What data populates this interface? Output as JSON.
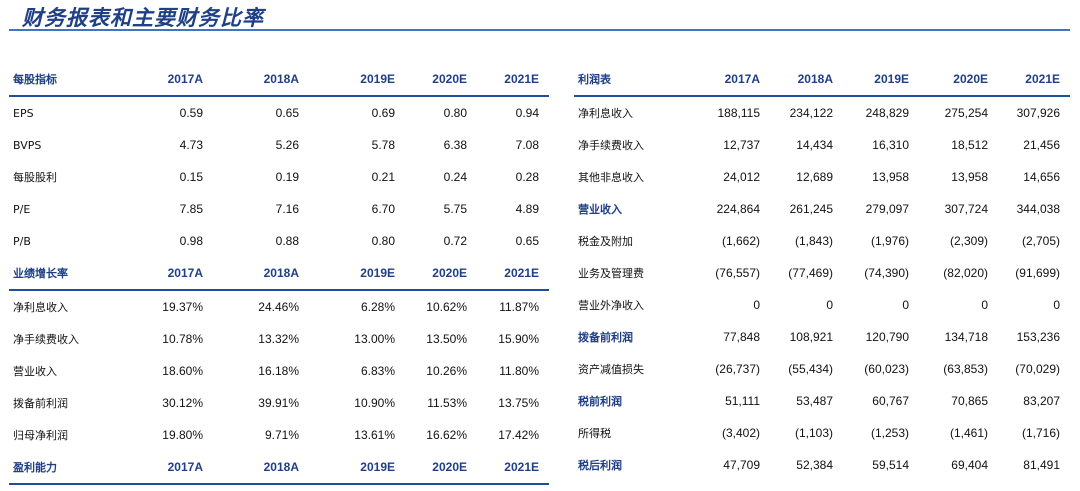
{
  "page": {
    "title": "财务报表和主要财务比率"
  },
  "left_table": {
    "sections": [
      {
        "header": [
          "每股指标",
          "2017A",
          "2018A",
          "2019E",
          "2020E",
          "2021E"
        ],
        "rows": [
          [
            "EPS",
            "0.59",
            "0.65",
            "0.69",
            "0.80",
            "0.94"
          ],
          [
            "BVPS",
            "4.73",
            "5.26",
            "5.78",
            "6.38",
            "7.08"
          ],
          [
            "每股股利",
            "0.15",
            "0.19",
            "0.21",
            "0.24",
            "0.28"
          ],
          [
            "P/E",
            "7.85",
            "7.16",
            "6.70",
            "5.75",
            "4.89"
          ],
          [
            "P/B",
            "0.98",
            "0.88",
            "0.80",
            "0.72",
            "0.65"
          ]
        ]
      },
      {
        "header": [
          "业绩增长率",
          "2017A",
          "2018A",
          "2019E",
          "2020E",
          "2021E"
        ],
        "rows": [
          [
            "净利息收入",
            "19.37%",
            "24.46%",
            "6.28%",
            "10.62%",
            "11.87%"
          ],
          [
            "净手续费收入",
            "10.78%",
            "13.32%",
            "13.00%",
            "13.50%",
            "15.90%"
          ],
          [
            "营业收入",
            "18.60%",
            "16.18%",
            "6.83%",
            "10.26%",
            "11.80%"
          ],
          [
            "拨备前利润",
            "30.12%",
            "39.91%",
            "10.90%",
            "11.53%",
            "13.75%"
          ],
          [
            "归母净利润",
            "19.80%",
            "9.71%",
            "13.61%",
            "16.62%",
            "17.42%"
          ]
        ]
      },
      {
        "header": [
          "盈利能力",
          "2017A",
          "2018A",
          "2019E",
          "2020E",
          "2021E"
        ],
        "rows": []
      }
    ]
  },
  "right_table": {
    "header": [
      "利润表",
      "2017A",
      "2018A",
      "2019E",
      "2020E",
      "2021E"
    ],
    "rows": [
      {
        "cells": [
          "净利息收入",
          "188,115",
          "234,122",
          "248,829",
          "275,254",
          "307,926"
        ],
        "highlight": false
      },
      {
        "cells": [
          "净手续费收入",
          "12,737",
          "14,434",
          "16,310",
          "18,512",
          "21,456"
        ],
        "highlight": false
      },
      {
        "cells": [
          "其他非息收入",
          "24,012",
          "12,689",
          "13,958",
          "13,958",
          "14,656"
        ],
        "highlight": false
      },
      {
        "cells": [
          "营业收入",
          "224,864",
          "261,245",
          "279,097",
          "307,724",
          "344,038"
        ],
        "highlight": true
      },
      {
        "cells": [
          "税金及附加",
          "(1,662)",
          "(1,843)",
          "(1,976)",
          "(2,309)",
          "(2,705)"
        ],
        "highlight": false
      },
      {
        "cells": [
          "业务及管理费",
          "(76,557)",
          "(77,469)",
          "(74,390)",
          "(82,020)",
          "(91,699)"
        ],
        "highlight": false
      },
      {
        "cells": [
          "营业外净收入",
          "0",
          "0",
          "0",
          "0",
          "0"
        ],
        "highlight": false
      },
      {
        "cells": [
          "拨备前利润",
          "77,848",
          "108,921",
          "120,790",
          "134,718",
          "153,236"
        ],
        "highlight": true
      },
      {
        "cells": [
          "资产减值损失",
          "(26,737)",
          "(55,434)",
          "(60,023)",
          "(63,853)",
          "(70,029)"
        ],
        "highlight": false
      },
      {
        "cells": [
          "税前利润",
          "51,111",
          "53,487",
          "60,767",
          "70,865",
          "83,207"
        ],
        "highlight": true
      },
      {
        "cells": [
          "所得税",
          "(3,402)",
          "(1,103)",
          "(1,253)",
          "(1,461)",
          "(1,716)"
        ],
        "highlight": false
      },
      {
        "cells": [
          "税后利润",
          "47,709",
          "52,384",
          "59,514",
          "69,404",
          "81,491"
        ],
        "highlight": true
      }
    ]
  },
  "colors": {
    "accent": "#1f3f86",
    "rule": "#4472c4"
  }
}
